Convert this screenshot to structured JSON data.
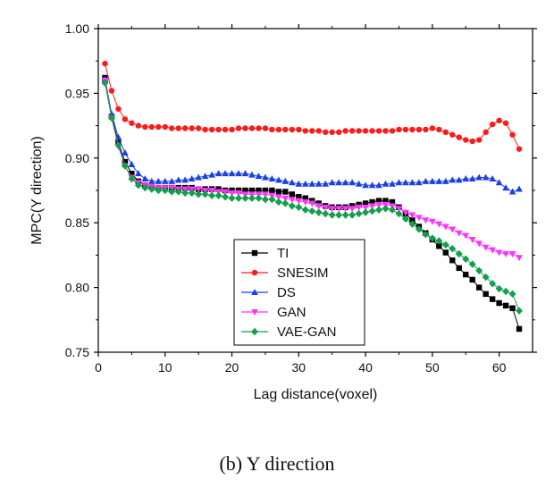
{
  "caption": "(b) Y direction",
  "chart_data": {
    "type": "line",
    "xlabel": "Lag distance(voxel)",
    "ylabel": "MPC(Y direction)",
    "xlim": [
      0,
      65
    ],
    "ylim": [
      0.75,
      1.0
    ],
    "xticks": [
      0,
      10,
      20,
      30,
      40,
      50,
      60
    ],
    "yticks": [
      0.75,
      0.8,
      0.85,
      0.9,
      0.95,
      1.0
    ],
    "ytick_labels": [
      "0.75",
      "0.80",
      "0.85",
      "0.90",
      "0.95",
      "1.00"
    ],
    "grid": false,
    "legend_position": "lower-center",
    "x": [
      1,
      2,
      3,
      4,
      5,
      6,
      7,
      8,
      9,
      10,
      11,
      12,
      13,
      14,
      15,
      16,
      17,
      18,
      19,
      20,
      21,
      22,
      23,
      24,
      25,
      26,
      27,
      28,
      29,
      30,
      31,
      32,
      33,
      34,
      35,
      36,
      37,
      38,
      39,
      40,
      41,
      42,
      43,
      44,
      45,
      46,
      47,
      48,
      49,
      50,
      51,
      52,
      53,
      54,
      55,
      56,
      57,
      58,
      59,
      60,
      61,
      62,
      63
    ],
    "series": [
      {
        "name": "TI",
        "color": "#000000",
        "marker": "square",
        "values": [
          0.962,
          0.932,
          0.912,
          0.897,
          0.888,
          0.882,
          0.879,
          0.878,
          0.877,
          0.877,
          0.877,
          0.877,
          0.877,
          0.877,
          0.876,
          0.876,
          0.876,
          0.876,
          0.875,
          0.875,
          0.875,
          0.875,
          0.875,
          0.875,
          0.875,
          0.875,
          0.874,
          0.874,
          0.872,
          0.87,
          0.869,
          0.867,
          0.865,
          0.863,
          0.862,
          0.862,
          0.862,
          0.863,
          0.864,
          0.865,
          0.866,
          0.867,
          0.867,
          0.866,
          0.862,
          0.857,
          0.852,
          0.847,
          0.842,
          0.837,
          0.832,
          0.827,
          0.821,
          0.815,
          0.81,
          0.806,
          0.8,
          0.795,
          0.791,
          0.788,
          0.786,
          0.784,
          0.768
        ]
      },
      {
        "name": "SNESIM",
        "color": "#ff1a1a",
        "marker": "circle",
        "values": [
          0.973,
          0.952,
          0.938,
          0.93,
          0.927,
          0.925,
          0.924,
          0.924,
          0.924,
          0.924,
          0.923,
          0.923,
          0.923,
          0.923,
          0.923,
          0.922,
          0.922,
          0.922,
          0.922,
          0.922,
          0.923,
          0.923,
          0.923,
          0.923,
          0.923,
          0.922,
          0.922,
          0.922,
          0.922,
          0.922,
          0.921,
          0.921,
          0.921,
          0.92,
          0.92,
          0.92,
          0.921,
          0.921,
          0.921,
          0.921,
          0.921,
          0.921,
          0.921,
          0.921,
          0.922,
          0.922,
          0.922,
          0.922,
          0.922,
          0.923,
          0.922,
          0.92,
          0.918,
          0.916,
          0.914,
          0.913,
          0.914,
          0.92,
          0.926,
          0.929,
          0.927,
          0.918,
          0.907
        ]
      },
      {
        "name": "DS",
        "color": "#1a3fe6",
        "marker": "triangle-up",
        "values": [
          0.961,
          0.934,
          0.916,
          0.904,
          0.895,
          0.888,
          0.884,
          0.882,
          0.882,
          0.882,
          0.882,
          0.883,
          0.883,
          0.884,
          0.885,
          0.886,
          0.887,
          0.888,
          0.888,
          0.888,
          0.888,
          0.888,
          0.887,
          0.886,
          0.885,
          0.884,
          0.883,
          0.882,
          0.881,
          0.88,
          0.88,
          0.88,
          0.88,
          0.88,
          0.881,
          0.881,
          0.881,
          0.881,
          0.88,
          0.879,
          0.879,
          0.879,
          0.88,
          0.88,
          0.881,
          0.881,
          0.881,
          0.881,
          0.882,
          0.882,
          0.882,
          0.882,
          0.883,
          0.883,
          0.884,
          0.884,
          0.885,
          0.885,
          0.884,
          0.881,
          0.877,
          0.874,
          0.876
        ]
      },
      {
        "name": "GAN",
        "color": "#ff33ff",
        "marker": "triangle-down",
        "values": [
          0.96,
          0.931,
          0.909,
          0.894,
          0.885,
          0.881,
          0.879,
          0.878,
          0.877,
          0.877,
          0.877,
          0.876,
          0.876,
          0.876,
          0.876,
          0.875,
          0.875,
          0.874,
          0.874,
          0.873,
          0.873,
          0.872,
          0.872,
          0.872,
          0.872,
          0.871,
          0.87,
          0.869,
          0.868,
          0.867,
          0.866,
          0.865,
          0.863,
          0.862,
          0.861,
          0.861,
          0.861,
          0.861,
          0.862,
          0.862,
          0.863,
          0.864,
          0.864,
          0.863,
          0.861,
          0.858,
          0.856,
          0.854,
          0.852,
          0.851,
          0.849,
          0.847,
          0.845,
          0.842,
          0.84,
          0.837,
          0.834,
          0.831,
          0.829,
          0.827,
          0.826,
          0.826,
          0.823
        ]
      },
      {
        "name": "VAE-GAN",
        "color": "#12a04c",
        "marker": "diamond",
        "values": [
          0.958,
          0.931,
          0.91,
          0.894,
          0.884,
          0.879,
          0.877,
          0.876,
          0.875,
          0.875,
          0.874,
          0.874,
          0.873,
          0.873,
          0.872,
          0.872,
          0.871,
          0.871,
          0.87,
          0.869,
          0.869,
          0.869,
          0.869,
          0.869,
          0.868,
          0.868,
          0.866,
          0.865,
          0.863,
          0.862,
          0.86,
          0.859,
          0.858,
          0.857,
          0.856,
          0.856,
          0.856,
          0.856,
          0.857,
          0.858,
          0.859,
          0.86,
          0.861,
          0.86,
          0.857,
          0.853,
          0.849,
          0.845,
          0.841,
          0.838,
          0.836,
          0.833,
          0.83,
          0.826,
          0.822,
          0.818,
          0.813,
          0.808,
          0.803,
          0.799,
          0.797,
          0.795,
          0.782
        ]
      }
    ]
  }
}
